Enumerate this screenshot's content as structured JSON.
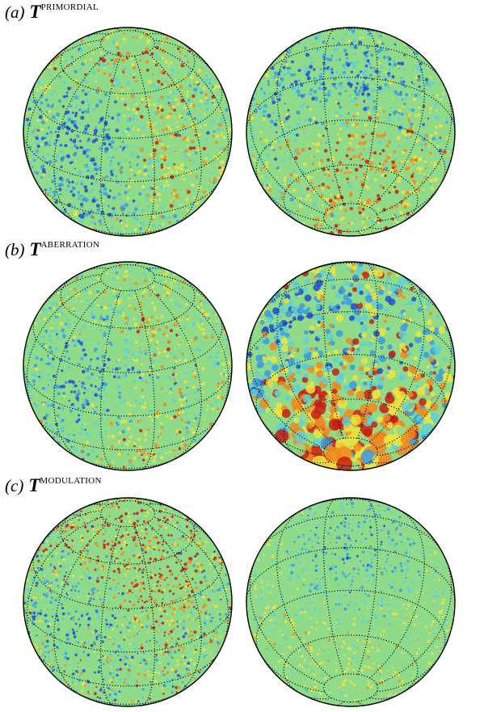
{
  "panels": [
    {
      "id": "a",
      "letter": "(a)",
      "symbol": "T",
      "superscript": "PRIMORDIAL",
      "views": [
        {
          "view": "north-tilted",
          "map_style": "primordial-left"
        },
        {
          "view": "south-tilted",
          "map_style": "primordial-right"
        }
      ]
    },
    {
      "id": "b",
      "letter": "(b)",
      "symbol": "T",
      "superscript": "ABERRATION",
      "views": [
        {
          "view": "north-tilted",
          "map_style": "aberration-left"
        },
        {
          "view": "south-tilted",
          "map_style": "aberration-right"
        }
      ]
    },
    {
      "id": "c",
      "letter": "(c)",
      "symbol": "T",
      "superscript": "MODULATION",
      "views": [
        {
          "view": "north-tilted",
          "map_style": "modulation-left"
        },
        {
          "view": "south-tilted",
          "map_style": "modulation-right"
        }
      ]
    }
  ],
  "colormap": [
    "#1f4fd6",
    "#3b9be3",
    "#5fd0d5",
    "#8fdb8a",
    "#f2e33a",
    "#f08a1e",
    "#c71f12"
  ],
  "graticule_style": "dotted-black"
}
